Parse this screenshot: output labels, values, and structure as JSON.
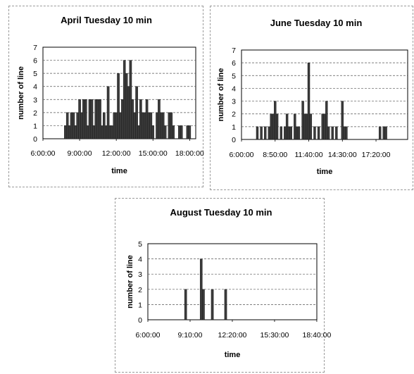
{
  "chart_data": [
    {
      "type": "bar",
      "title": "April Tuesday 10 min",
      "xlabel": "time",
      "ylabel": "number of line",
      "ylim": [
        0,
        7
      ],
      "yticks": [
        "0",
        "1",
        "2",
        "3",
        "4",
        "5",
        "6",
        "7"
      ],
      "xticks": [
        "6:00:00",
        "9:00:00",
        "12:00:00",
        "15:00:00",
        "18:00:00"
      ],
      "x_range_hours": [
        6,
        18.5
      ],
      "grid": "horizontal dashed",
      "series": [
        {
          "values": [
            {
              "x": "7:50",
              "y": 1
            },
            {
              "x": "8:00",
              "y": 2
            },
            {
              "x": "8:10",
              "y": 1
            },
            {
              "x": "8:20",
              "y": 2
            },
            {
              "x": "8:30",
              "y": 2
            },
            {
              "x": "8:40",
              "y": 1
            },
            {
              "x": "8:50",
              "y": 2
            },
            {
              "x": "9:00",
              "y": 3
            },
            {
              "x": "9:10",
              "y": 2
            },
            {
              "x": "9:20",
              "y": 3
            },
            {
              "x": "9:30",
              "y": 3
            },
            {
              "x": "9:40",
              "y": 1
            },
            {
              "x": "9:50",
              "y": 3
            },
            {
              "x": "10:00",
              "y": 3
            },
            {
              "x": "10:10",
              "y": 1
            },
            {
              "x": "10:20",
              "y": 3
            },
            {
              "x": "10:30",
              "y": 3
            },
            {
              "x": "10:40",
              "y": 3
            },
            {
              "x": "10:50",
              "y": 1
            },
            {
              "x": "11:00",
              "y": 2
            },
            {
              "x": "11:10",
              "y": 1
            },
            {
              "x": "11:20",
              "y": 4
            },
            {
              "x": "11:30",
              "y": 1
            },
            {
              "x": "11:40",
              "y": 1
            },
            {
              "x": "11:50",
              "y": 2
            },
            {
              "x": "12:00",
              "y": 2
            },
            {
              "x": "12:10",
              "y": 5
            },
            {
              "x": "12:20",
              "y": 2
            },
            {
              "x": "12:30",
              "y": 3
            },
            {
              "x": "12:40",
              "y": 6
            },
            {
              "x": "12:50",
              "y": 5
            },
            {
              "x": "13:00",
              "y": 4
            },
            {
              "x": "13:10",
              "y": 6
            },
            {
              "x": "13:20",
              "y": 3
            },
            {
              "x": "13:30",
              "y": 2
            },
            {
              "x": "13:40",
              "y": 4
            },
            {
              "x": "13:50",
              "y": 1
            },
            {
              "x": "14:00",
              "y": 3
            },
            {
              "x": "14:10",
              "y": 2
            },
            {
              "x": "14:20",
              "y": 2
            },
            {
              "x": "14:30",
              "y": 3
            },
            {
              "x": "14:40",
              "y": 2
            },
            {
              "x": "14:50",
              "y": 2
            },
            {
              "x": "15:00",
              "y": 1
            },
            {
              "x": "15:20",
              "y": 2
            },
            {
              "x": "15:30",
              "y": 3
            },
            {
              "x": "15:40",
              "y": 2
            },
            {
              "x": "15:50",
              "y": 2
            },
            {
              "x": "16:00",
              "y": 1
            },
            {
              "x": "16:20",
              "y": 2
            },
            {
              "x": "16:30",
              "y": 2
            },
            {
              "x": "16:40",
              "y": 1
            },
            {
              "x": "17:10",
              "y": 1
            },
            {
              "x": "17:20",
              "y": 1
            },
            {
              "x": "17:50",
              "y": 1
            },
            {
              "x": "18:00",
              "y": 1
            }
          ]
        }
      ]
    },
    {
      "type": "bar",
      "title": "June Tuesday 10 min",
      "xlabel": "time",
      "ylabel": "number of line",
      "ylim": [
        0,
        7
      ],
      "yticks": [
        "0",
        "1",
        "2",
        "3",
        "4",
        "5",
        "6",
        "7"
      ],
      "xticks": [
        "6:00:00",
        "8:50:00",
        "11:40:00",
        "14:30:00",
        "17:20:00"
      ],
      "x_range_hours": [
        6,
        20
      ],
      "grid": "horizontal dashed",
      "series": [
        {
          "values": [
            {
              "x": "7:20",
              "y": 1
            },
            {
              "x": "7:40",
              "y": 1
            },
            {
              "x": "8:00",
              "y": 1
            },
            {
              "x": "8:20",
              "y": 1
            },
            {
              "x": "8:30",
              "y": 2
            },
            {
              "x": "8:40",
              "y": 2
            },
            {
              "x": "8:50",
              "y": 3
            },
            {
              "x": "9:00",
              "y": 2
            },
            {
              "x": "9:20",
              "y": 1
            },
            {
              "x": "9:40",
              "y": 1
            },
            {
              "x": "9:50",
              "y": 2
            },
            {
              "x": "10:00",
              "y": 1
            },
            {
              "x": "10:10",
              "y": 1
            },
            {
              "x": "10:30",
              "y": 2
            },
            {
              "x": "10:40",
              "y": 1
            },
            {
              "x": "10:50",
              "y": 1
            },
            {
              "x": "11:10",
              "y": 3
            },
            {
              "x": "11:20",
              "y": 2
            },
            {
              "x": "11:30",
              "y": 2
            },
            {
              "x": "11:40",
              "y": 6
            },
            {
              "x": "11:50",
              "y": 2
            },
            {
              "x": "12:10",
              "y": 1
            },
            {
              "x": "12:30",
              "y": 1
            },
            {
              "x": "12:50",
              "y": 2
            },
            {
              "x": "13:00",
              "y": 2
            },
            {
              "x": "13:10",
              "y": 3
            },
            {
              "x": "13:20",
              "y": 1
            },
            {
              "x": "13:40",
              "y": 1
            },
            {
              "x": "14:00",
              "y": 1
            },
            {
              "x": "14:30",
              "y": 3
            },
            {
              "x": "14:40",
              "y": 1
            },
            {
              "x": "14:50",
              "y": 1
            },
            {
              "x": "17:40",
              "y": 1
            },
            {
              "x": "18:00",
              "y": 1
            },
            {
              "x": "18:10",
              "y": 1
            }
          ]
        }
      ]
    },
    {
      "type": "bar",
      "title": "August Tuesday 10 min",
      "xlabel": "time",
      "ylabel": "number of line",
      "ylim": [
        0,
        5
      ],
      "yticks": [
        "0",
        "1",
        "2",
        "3",
        "4",
        "5"
      ],
      "xticks": [
        "6:00:00",
        "9:10:00",
        "12:20:00",
        "15:30:00",
        "18:40:00"
      ],
      "x_range_hours": [
        6,
        18.67
      ],
      "grid": "horizontal dashed",
      "series": [
        {
          "values": [
            {
              "x": "8:50",
              "y": 2
            },
            {
              "x": "10:00",
              "y": 4
            },
            {
              "x": "10:10",
              "y": 2
            },
            {
              "x": "10:50",
              "y": 2
            },
            {
              "x": "11:50",
              "y": 2
            }
          ]
        }
      ]
    }
  ]
}
